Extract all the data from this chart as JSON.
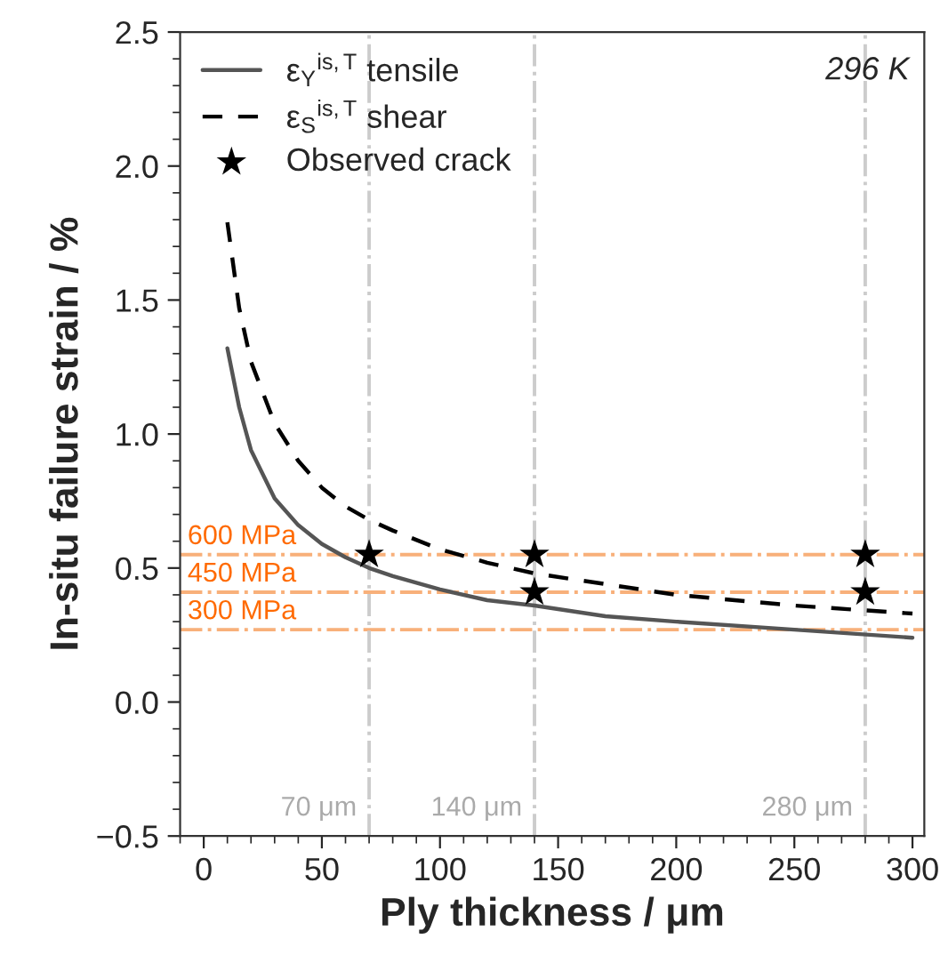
{
  "chart_data": {
    "type": "line",
    "xlabel": "Ply thickness / μm",
    "ylabel": "In-situ failure strain / %",
    "series": [
      {
        "name": "ε$_{Y}$$^{is,T}$ tensile",
        "color": "#555555",
        "line_style": "solid",
        "x": [
          10,
          15,
          20,
          30,
          40,
          50,
          60,
          70,
          80,
          100,
          120,
          140,
          170,
          200,
          250,
          300
        ],
        "values": [
          1.32,
          1.1,
          0.94,
          0.76,
          0.66,
          0.59,
          0.54,
          0.5,
          0.47,
          0.42,
          0.38,
          0.36,
          0.32,
          0.3,
          0.27,
          0.24
        ]
      },
      {
        "name": "ε$_{S}$$^{is,T}$ shear",
        "color": "#000000",
        "line_style": "dashed",
        "x": [
          10,
          15,
          20,
          30,
          40,
          50,
          60,
          70,
          80,
          100,
          120,
          140,
          170,
          200,
          250,
          300
        ],
        "values": [
          1.79,
          1.47,
          1.27,
          1.04,
          0.9,
          0.8,
          0.73,
          0.68,
          0.64,
          0.57,
          0.52,
          0.48,
          0.44,
          0.4,
          0.36,
          0.33
        ]
      },
      {
        "name": "Observed crack",
        "type": "scatter",
        "color": "#000000",
        "marker": "star",
        "x": [
          70,
          140,
          140,
          280,
          280
        ],
        "values": [
          0.55,
          0.55,
          0.41,
          0.55,
          0.41
        ]
      }
    ],
    "xlim": [
      -10,
      305
    ],
    "xticks": [
      0,
      50,
      100,
      150,
      200,
      250,
      300
    ],
    "ylim": [
      -0.5,
      2.5
    ],
    "yticks": [
      {
        "value": -0.5,
        "label": "−0.5"
      },
      {
        "value": 0,
        "label": "0.0"
      },
      0.5,
      {
        "value": 1,
        "label": "1.0"
      },
      1.5,
      {
        "value": 2,
        "label": "2.0"
      },
      2.5
    ],
    "ref_lines": [
      {
        "axis": "y",
        "value": 0.55,
        "label": "600 MPa",
        "color": "#f8b07a",
        "line_style": "dashdot"
      },
      {
        "axis": "y",
        "value": 0.41,
        "label": "450 MPa",
        "color": "#f8b07a",
        "line_style": "dashdot"
      },
      {
        "axis": "y",
        "value": 0.27,
        "label": "300 MPa",
        "color": "#f8b07a",
        "line_style": "dashdot"
      },
      {
        "axis": "x",
        "value": 70,
        "label": "70 μm",
        "color": "#cccccc",
        "line_style": "dashdot"
      },
      {
        "axis": "x",
        "value": 140,
        "label": "140 μm",
        "color": "#cccccc",
        "line_style": "dashdot"
      },
      {
        "axis": "x",
        "value": 280,
        "label": "280 μm",
        "color": "#cccccc",
        "line_style": "dashdot"
      }
    ],
    "annotations": [
      "296 K"
    ],
    "legend": "top left",
    "grid": false
  }
}
